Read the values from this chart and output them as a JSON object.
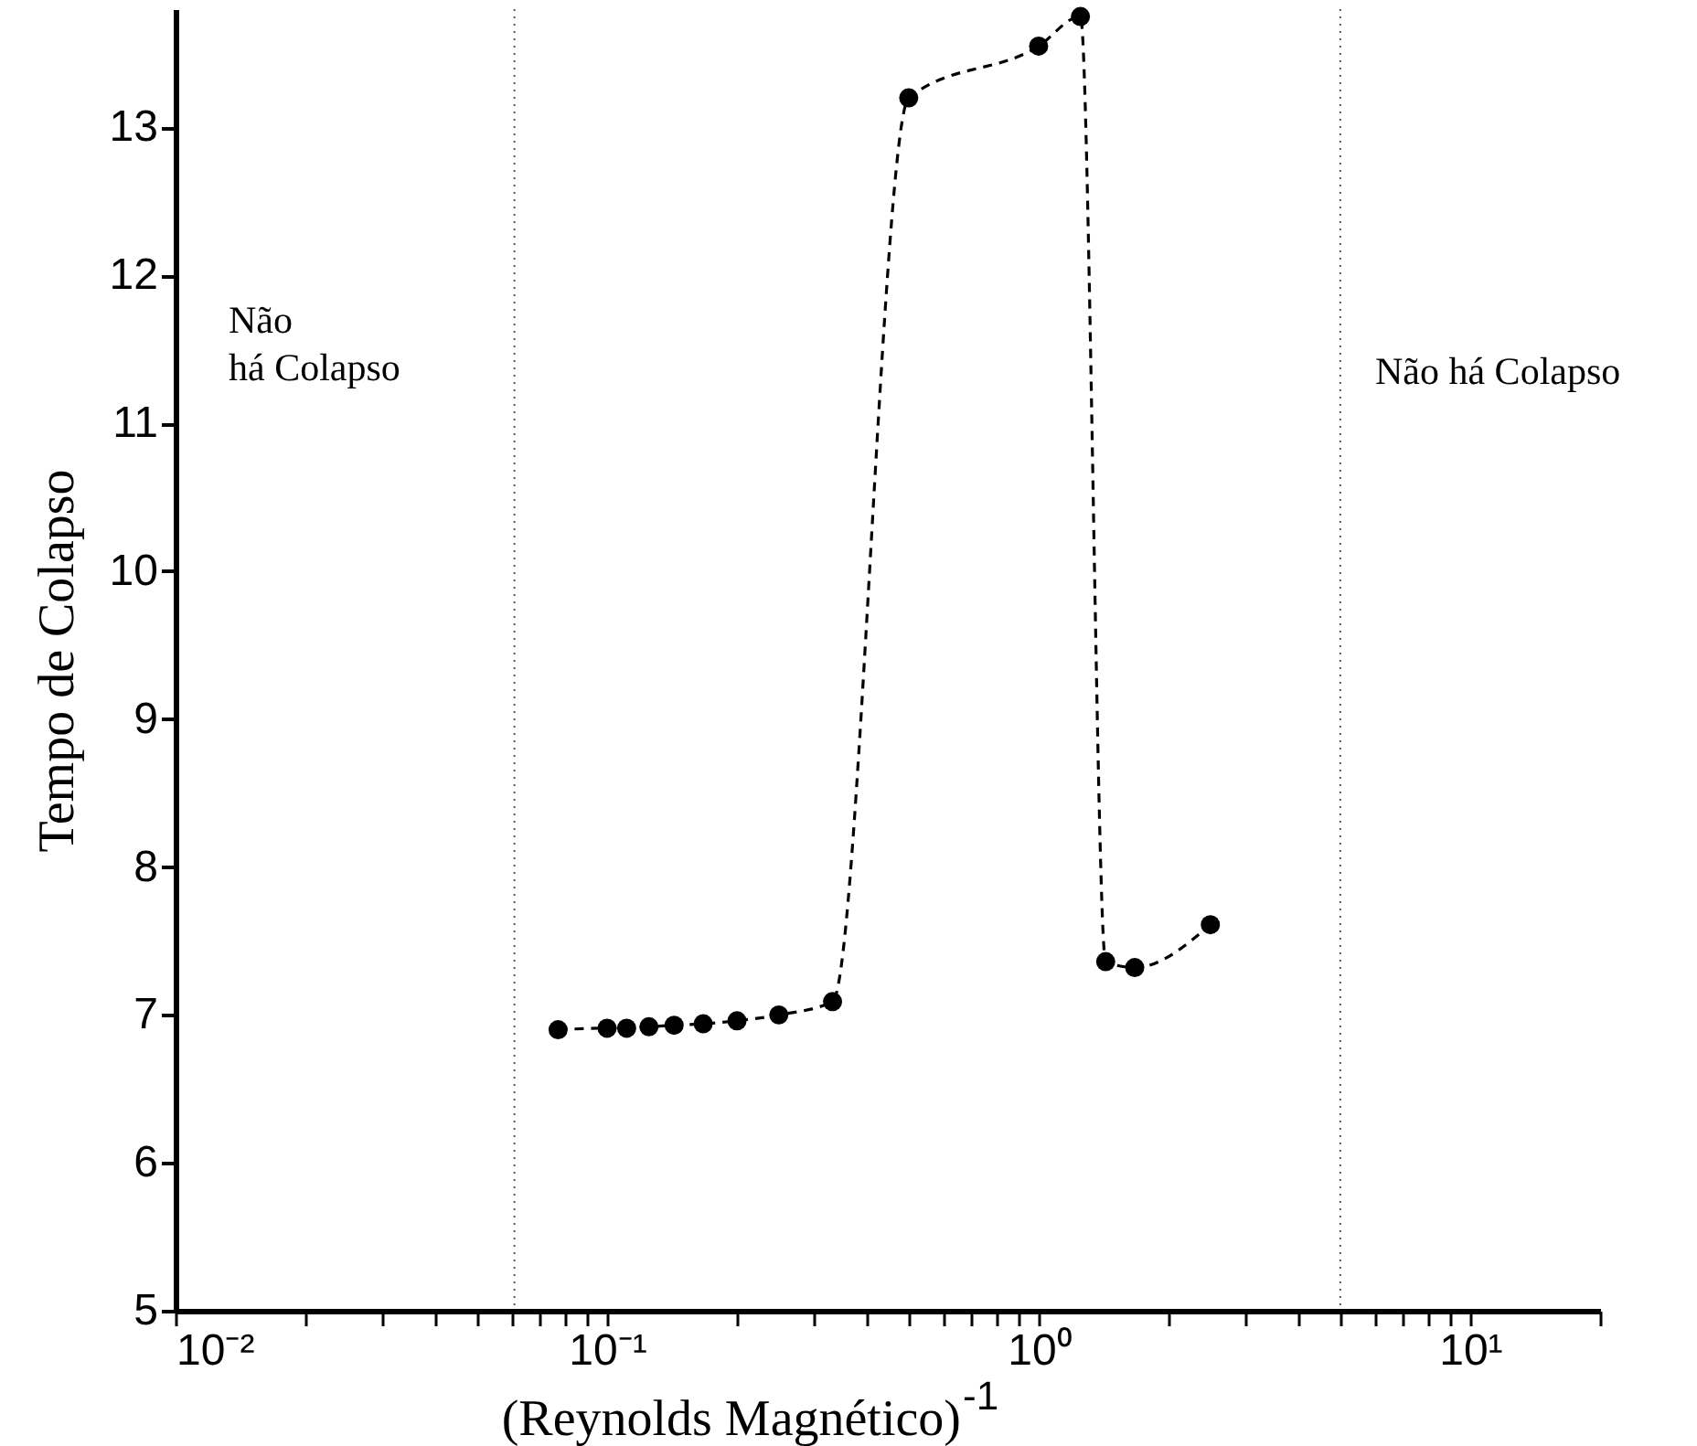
{
  "chart_data": {
    "type": "line",
    "xlabel": "(Reynolds Magnético)$^{-1}$",
    "ylabel": "Tempo de Colapso",
    "x": [
      0.077,
      0.1,
      0.111,
      0.125,
      0.143,
      0.167,
      0.2,
      0.25,
      0.333,
      0.5,
      1.0,
      1.25,
      1.43,
      1.67,
      2.5
    ],
    "series": [
      {
        "color": "#000000",
        "values": [
          6.9,
          6.91,
          6.91,
          6.92,
          6.93,
          6.94,
          6.96,
          7.0,
          7.09,
          13.2,
          13.55,
          13.75,
          7.36,
          7.32,
          7.61
        ]
      }
    ],
    "log": "x",
    "xlim": [
      0.01,
      20
    ],
    "ylim": [
      5,
      13.8
    ],
    "xticks": [
      {
        "value": 0.01,
        "label": "10⁻²"
      },
      {
        "value": 0.02,
        "label": null
      },
      {
        "value": 0.03,
        "label": null
      },
      {
        "value": 0.04,
        "label": null
      },
      {
        "value": 0.05,
        "label": null
      },
      {
        "value": 0.06,
        "label": null
      },
      {
        "value": 0.07,
        "label": null
      },
      {
        "value": 0.08,
        "label": null
      },
      {
        "value": 0.09,
        "label": null
      },
      {
        "value": 0.1,
        "label": "10⁻¹"
      },
      {
        "value": 0.2,
        "label": null
      },
      {
        "value": 0.3,
        "label": null
      },
      {
        "value": 0.4,
        "label": null
      },
      {
        "value": 0.5,
        "label": null
      },
      {
        "value": 0.6,
        "label": null
      },
      {
        "value": 0.7,
        "label": null
      },
      {
        "value": 0.8,
        "label": null
      },
      {
        "value": 0.9,
        "label": null
      },
      {
        "value": 1,
        "label": "10⁰"
      },
      {
        "value": 2,
        "label": null
      },
      {
        "value": 3,
        "label": null
      },
      {
        "value": 4,
        "label": null
      },
      {
        "value": 5,
        "label": null
      },
      {
        "value": 6,
        "label": null
      },
      {
        "value": 7,
        "label": null
      },
      {
        "value": 8,
        "label": null
      },
      {
        "value": 9,
        "label": null
      },
      {
        "value": 10,
        "label": "10¹"
      },
      {
        "value": 20,
        "label": null
      }
    ],
    "yticks": [
      5,
      6,
      7,
      8,
      9,
      10,
      11,
      12,
      13
    ],
    "ref_lines": [
      {
        "axis": "x",
        "value": 0.061,
        "color": "#555555",
        "line_style": "dotted"
      },
      {
        "axis": "x",
        "value": 5,
        "color": "#555555",
        "line_style": "dotted"
      }
    ],
    "annotations": [
      "Não\nhá Colapso",
      "Não há Colapso"
    ],
    "marker": "circle",
    "line_style": "dashed",
    "grid": false
  }
}
